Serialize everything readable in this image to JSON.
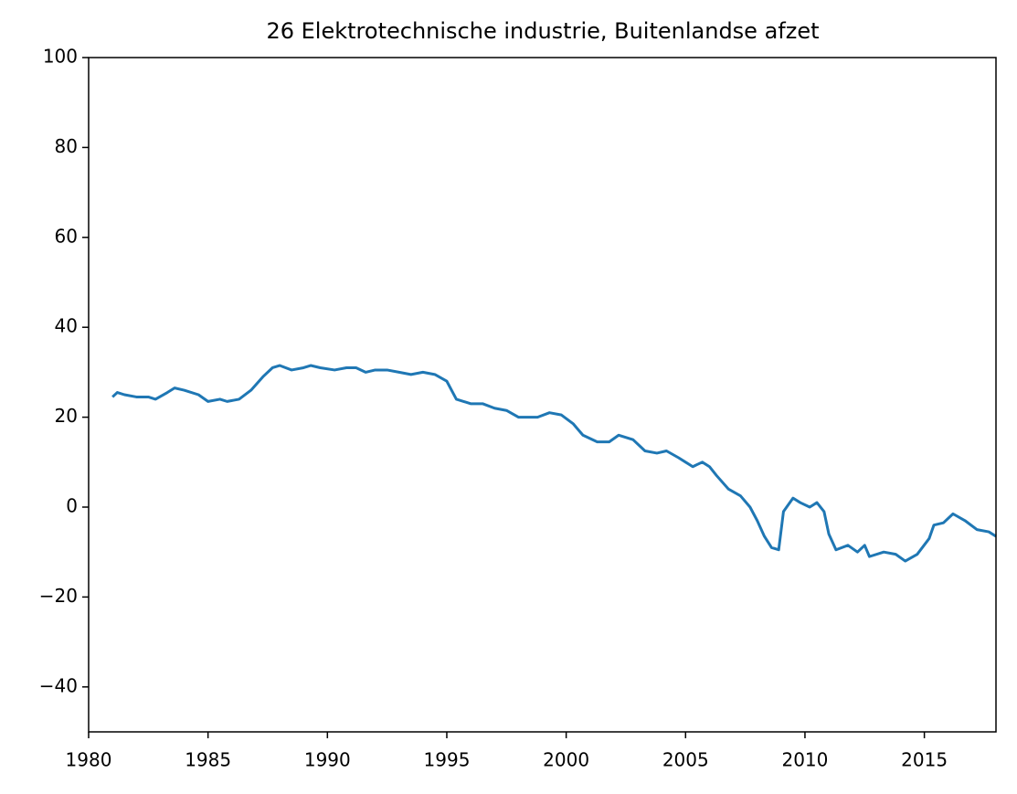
{
  "chart_data": {
    "type": "line",
    "title": "26 Elektrotechnische industrie, Buitenlandse afzet",
    "x": [
      1981.0,
      1981.2,
      1981.5,
      1982.0,
      1982.5,
      1982.8,
      1983.3,
      1983.6,
      1984.0,
      1984.6,
      1985.0,
      1985.5,
      1985.8,
      1986.3,
      1986.8,
      1987.3,
      1987.7,
      1988.0,
      1988.5,
      1989.0,
      1989.3,
      1989.7,
      1990.3,
      1990.8,
      1991.2,
      1991.6,
      1992.0,
      1992.5,
      1993.0,
      1993.5,
      1994.0,
      1994.5,
      1995.0,
      1995.4,
      1996.0,
      1996.5,
      1997.0,
      1997.5,
      1998.0,
      1998.8,
      1999.3,
      1999.8,
      2000.3,
      2000.7,
      2001.3,
      2001.8,
      2002.2,
      2002.8,
      2003.3,
      2003.8,
      2004.2,
      2004.7,
      2005.0,
      2005.3,
      2005.7,
      2006.0,
      2006.3,
      2006.8,
      2007.3,
      2007.7,
      2008.0,
      2008.3,
      2008.6,
      2008.9,
      2009.1,
      2009.5,
      2009.8,
      2010.2,
      2010.5,
      2010.8,
      2011.0,
      2011.3,
      2011.8,
      2012.2,
      2012.5,
      2012.7,
      2013.3,
      2013.8,
      2014.2,
      2014.7,
      2015.2,
      2015.4,
      2015.8,
      2016.2,
      2016.7,
      2017.2,
      2017.7,
      2018.0
    ],
    "series": [
      {
        "color": "#1f77b4",
        "values": [
          24.5,
          25.5,
          25,
          24.5,
          24.5,
          24,
          25.5,
          26.5,
          26,
          25,
          23.5,
          24,
          23.5,
          24,
          26,
          29,
          31,
          31.5,
          30.5,
          31,
          31.5,
          31,
          30.5,
          31,
          31,
          30,
          30.5,
          30.5,
          30,
          29.5,
          30,
          29.5,
          28,
          24,
          23,
          23,
          22,
          21.5,
          20,
          20,
          21,
          20.5,
          18.5,
          16,
          14.5,
          14.5,
          16,
          15,
          12.5,
          12,
          12.5,
          11,
          10,
          9,
          10,
          9,
          7,
          4,
          2.5,
          0,
          -3,
          -6.5,
          -9,
          -9.5,
          -1,
          2,
          1,
          0,
          1,
          -1,
          -6,
          -9.5,
          -8.5,
          -10,
          -8.5,
          -11,
          -10,
          -10.5,
          -12,
          -10.5,
          -7,
          -4,
          -3.5,
          -1.5,
          -3,
          -5,
          -5.5,
          -6.5
        ]
      }
    ],
    "xlim": [
      1980,
      2018
    ],
    "ylim": [
      -50,
      100
    ],
    "xticks": [
      1980,
      1985,
      1990,
      1995,
      2000,
      2005,
      2010,
      2015
    ],
    "yticks": [
      {
        "value": -40,
        "label": "−40"
      },
      {
        "value": -20,
        "label": "−20"
      },
      0,
      20,
      40,
      60,
      80,
      100
    ]
  }
}
